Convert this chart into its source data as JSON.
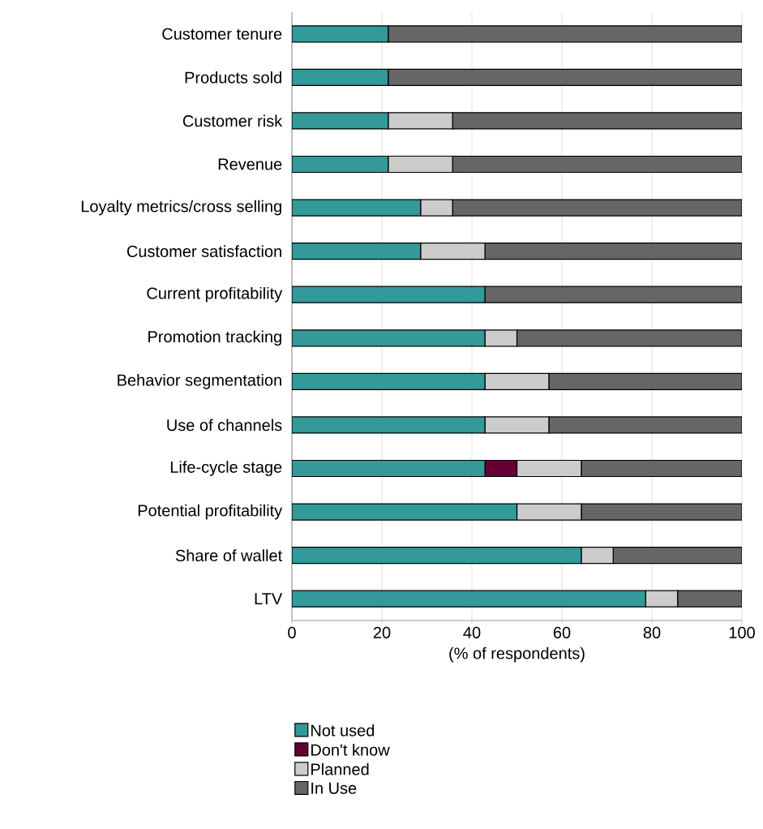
{
  "chart_data": {
    "type": "bar",
    "orientation": "horizontal",
    "stacked": true,
    "xlabel": "(% of respondents)",
    "categories": [
      "Customer tenure",
      "Products sold",
      "Customer risk",
      "Revenue",
      "Loyalty metrics/cross selling",
      "Customer satisfaction",
      "Current profitability",
      "Promotion tracking",
      "Behavior segmentation",
      "Use of channels",
      "Life-cycle stage",
      "Potential profitability",
      "Share of wallet",
      "LTV"
    ],
    "series": [
      {
        "name": "Not used",
        "color": "#339999",
        "values": [
          21.4,
          21.4,
          21.4,
          21.4,
          28.6,
          28.6,
          42.9,
          42.9,
          42.9,
          42.9,
          42.9,
          50,
          64.3,
          78.6
        ]
      },
      {
        "name": "Don't know",
        "color": "#660033",
        "values": [
          0,
          0,
          0,
          0,
          0,
          0,
          0,
          0,
          0,
          0,
          7.1,
          0,
          0,
          0
        ]
      },
      {
        "name": "Planned",
        "color": "#cccccc",
        "values": [
          0,
          0,
          14.3,
          14.3,
          7.1,
          14.3,
          0,
          7.1,
          14.2,
          14.2,
          14.3,
          14.3,
          7.1,
          7.1
        ]
      },
      {
        "name": "In Use",
        "color": "#666666",
        "values": [
          78.6,
          78.6,
          64.3,
          64.3,
          64.3,
          57.1,
          57.1,
          50,
          42.9,
          42.9,
          35.7,
          35.7,
          28.6,
          14.3
        ]
      }
    ],
    "xlim": [
      0,
      100
    ],
    "xticks": [
      0,
      20,
      40,
      60,
      80,
      100
    ],
    "grid": "x",
    "legend": "bottom"
  }
}
